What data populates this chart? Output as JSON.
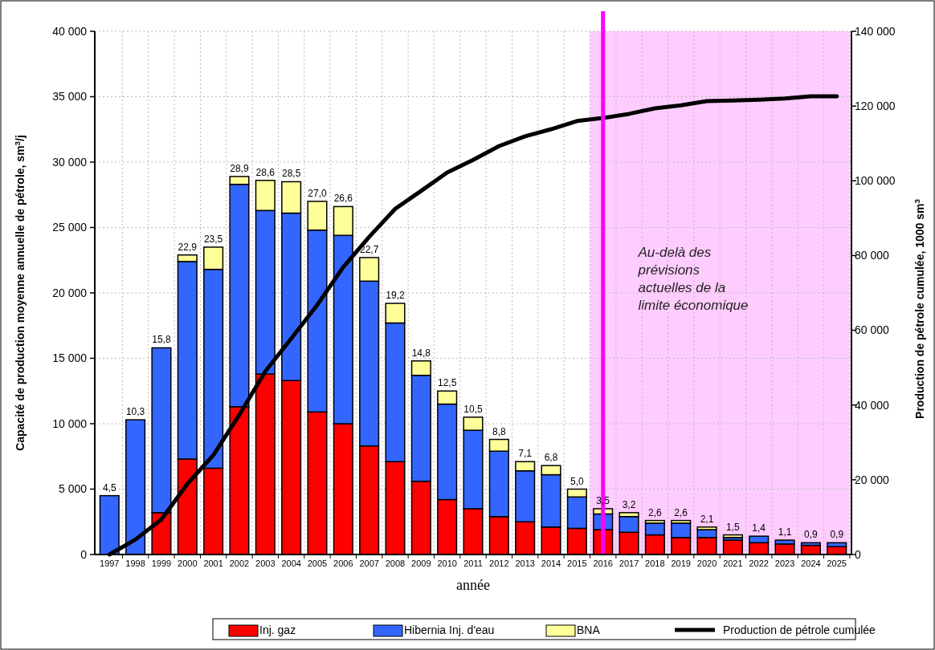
{
  "chart_data": {
    "type": "bar",
    "stacked": true,
    "xlabel": "année",
    "ylabel": "Capacité de production moyenne annuelle de pétrole, sm$^{3}$/j",
    "y2label": "Production de pétrole cumulée, 1000 sm$^{3}$",
    "categories": [
      "1997",
      "1998",
      "1999",
      "2000",
      "2001",
      "2002",
      "2003",
      "2004",
      "2005",
      "2006",
      "2007",
      "2008",
      "2009",
      "2010",
      "2011",
      "2012",
      "2013",
      "2014",
      "2015",
      "2016",
      "2017",
      "2018",
      "2019",
      "2020",
      "2021",
      "2022",
      "2023",
      "2024",
      "2025"
    ],
    "series": [
      {
        "name": "Inj. gaz",
        "color": "#ff0000",
        "values": [
          0,
          0,
          3200,
          7300,
          6600,
          11300,
          13800,
          13300,
          10900,
          10000,
          8300,
          7100,
          5600,
          4200,
          3500,
          2900,
          2500,
          2100,
          2000,
          1900,
          1700,
          1500,
          1300,
          1300,
          1100,
          900,
          800,
          700,
          600
        ]
      },
      {
        "name": "Hibernia Inj. d'eau",
        "color": "#3366ff",
        "values": [
          4500,
          10300,
          12600,
          15100,
          15200,
          17000,
          12500,
          12800,
          13900,
          14400,
          12600,
          10600,
          8100,
          7300,
          6000,
          5000,
          3900,
          4000,
          2400,
          1200,
          1200,
          900,
          1100,
          600,
          200,
          500,
          300,
          200,
          300
        ]
      },
      {
        "name": "BNA",
        "color": "#ffff99",
        "values": [
          0,
          0,
          0,
          500,
          1700,
          600,
          2300,
          2400,
          2200,
          2200,
          1800,
          1500,
          1100,
          1000,
          1000,
          900,
          700,
          700,
          600,
          400,
          300,
          200,
          200,
          200,
          200,
          0,
          0,
          0,
          0
        ]
      },
      {
        "name": "Production de pétrole cumulée",
        "type": "line",
        "axis": "y2",
        "color": "#000000",
        "values": [
          0,
          4000,
          9400,
          18900,
          26600,
          37400,
          49000,
          57800,
          66800,
          76900,
          85000,
          92500,
          97300,
          102200,
          105600,
          109300,
          111900,
          113800,
          116000,
          116800,
          117900,
          119400,
          120200,
          121300,
          121500,
          121700,
          122000,
          122600,
          122600
        ]
      }
    ],
    "annotations": [
      {
        "text": "4,5",
        "x": "1997",
        "y": 4500
      },
      {
        "text": "10,3",
        "x": "1998",
        "y": 10300
      },
      {
        "text": "15,8",
        "x": "1999",
        "y": 15800
      },
      {
        "text": "22,9",
        "x": "2000",
        "y": 22900
      },
      {
        "text": "23,5",
        "x": "2001",
        "y": 23500
      },
      {
        "text": "28,9",
        "x": "2002",
        "y": 28900
      },
      {
        "text": "28,6",
        "x": "2003",
        "y": 28600
      },
      {
        "text": "28,5",
        "x": "2004",
        "y": 28500
      },
      {
        "text": "27,0",
        "x": "2005",
        "y": 27000
      },
      {
        "text": "26,6",
        "x": "2006",
        "y": 26600
      },
      {
        "text": "22,7",
        "x": "2007",
        "y": 22700
      },
      {
        "text": "19,2",
        "x": "2008",
        "y": 19200
      },
      {
        "text": "14,8",
        "x": "2009",
        "y": 14800
      },
      {
        "text": "12,5",
        "x": "2010",
        "y": 12500
      },
      {
        "text": "10,5",
        "x": "2011",
        "y": 10500
      },
      {
        "text": "8,8",
        "x": "2012",
        "y": 8800
      },
      {
        "text": "7,1",
        "x": "2013",
        "y": 7100
      },
      {
        "text": "6,8",
        "x": "2014",
        "y": 6800
      },
      {
        "text": "5,0",
        "x": "2015",
        "y": 5000
      },
      {
        "text": "3,5",
        "x": "2016",
        "y": 3500
      },
      {
        "text": "3,2",
        "x": "2017",
        "y": 3200
      },
      {
        "text": "2,6",
        "x": "2018",
        "y": 2600
      },
      {
        "text": "2,6",
        "x": "2019",
        "y": 2600
      },
      {
        "text": "2,1",
        "x": "2020",
        "y": 2100
      },
      {
        "text": "1,5",
        "x": "2021",
        "y": 1500
      },
      {
        "text": "1,4",
        "x": "2022",
        "y": 1400
      },
      {
        "text": "1,1",
        "x": "2023",
        "y": 1100
      },
      {
        "text": "0,9",
        "x": "2024",
        "y": 900
      },
      {
        "text": "0,9",
        "x": "2025",
        "y": 900
      }
    ],
    "ylim": [
      0,
      40000
    ],
    "yticks": [
      {
        "value": 0,
        "label": "0"
      },
      {
        "value": 5000,
        "label": "5 000"
      },
      {
        "value": 10000,
        "label": "10 000"
      },
      {
        "value": 15000,
        "label": "15 000"
      },
      {
        "value": 20000,
        "label": "20 000"
      },
      {
        "value": 25000,
        "label": "25 000"
      },
      {
        "value": 30000,
        "label": "30 000"
      },
      {
        "value": 35000,
        "label": "35 000"
      },
      {
        "value": 40000,
        "label": "40 000"
      }
    ],
    "y2lim": [
      0,
      140000
    ],
    "y2ticks": [
      {
        "value": 0,
        "label": "0"
      },
      {
        "value": 20000,
        "label": "20 000"
      },
      {
        "value": 40000,
        "label": "40 000"
      },
      {
        "value": 60000,
        "label": "60 000"
      },
      {
        "value": 80000,
        "label": "80 000"
      },
      {
        "value": 100000,
        "label": "100 000"
      },
      {
        "value": 120000,
        "label": "120 000"
      },
      {
        "value": 140000,
        "label": "140 000"
      }
    ],
    "bands": [
      {
        "axis": "x",
        "from": "2016",
        "to": "2025",
        "label": "Au-delà des prévisions actuelles de la limite économique",
        "color": "#ffccff"
      }
    ],
    "ref_lines": [
      {
        "axis": "x",
        "value": "2016",
        "color": "#ff00ff"
      }
    ],
    "grid": true,
    "legend": "bottom"
  }
}
